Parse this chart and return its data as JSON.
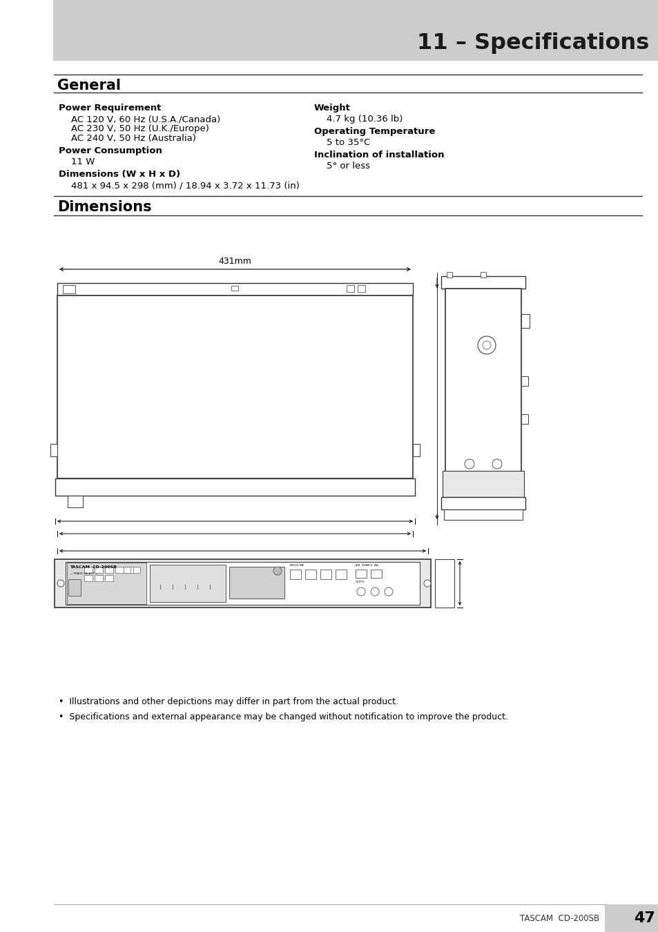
{
  "page_bg": "#ffffff",
  "header_bg": "#cccccc",
  "header_text": "11 – Specifications",
  "section1_title": "General",
  "section2_title": "Dimensions",
  "col1_items": [
    {
      "label": "Power Requirement",
      "bold": true,
      "indent": false
    },
    {
      "label": "AC 120 V, 60 Hz (U.S.A./Canada)",
      "bold": false,
      "indent": true
    },
    {
      "label": "AC 230 V, 50 Hz (U.K./Europe)",
      "bold": false,
      "indent": true
    },
    {
      "label": "AC 240 V, 50 Hz (Australia)",
      "bold": false,
      "indent": true
    },
    {
      "label": "Power Consumption",
      "bold": true,
      "indent": false
    },
    {
      "label": "11 W",
      "bold": false,
      "indent": true
    },
    {
      "label": "Dimensions (W x H x D)",
      "bold": true,
      "indent": false
    },
    {
      "label": "481 x 94.5 x 298 (mm) / 18.94 x 3.72 x 11.73 (in)",
      "bold": false,
      "indent": true
    }
  ],
  "col2_items": [
    {
      "label": "Weight",
      "bold": true,
      "indent": false
    },
    {
      "label": "4.7 kg (10.36 lb)",
      "bold": false,
      "indent": true
    },
    {
      "label": "Operating Temperature",
      "bold": true,
      "indent": false
    },
    {
      "label": "5 to 35°C",
      "bold": false,
      "indent": true
    },
    {
      "label": "Inclination of installation",
      "bold": true,
      "indent": false
    },
    {
      "label": "5° or less",
      "bold": false,
      "indent": true
    }
  ],
  "footer_notes": [
    "•  Illustrations and other depictions may differ in part from the actual product.",
    "•  Specifications and external appearance may be changed without notification to improve the product."
  ],
  "page_number": "47",
  "model": "TASCAM  CD-200SB",
  "dim_label": "431mm"
}
